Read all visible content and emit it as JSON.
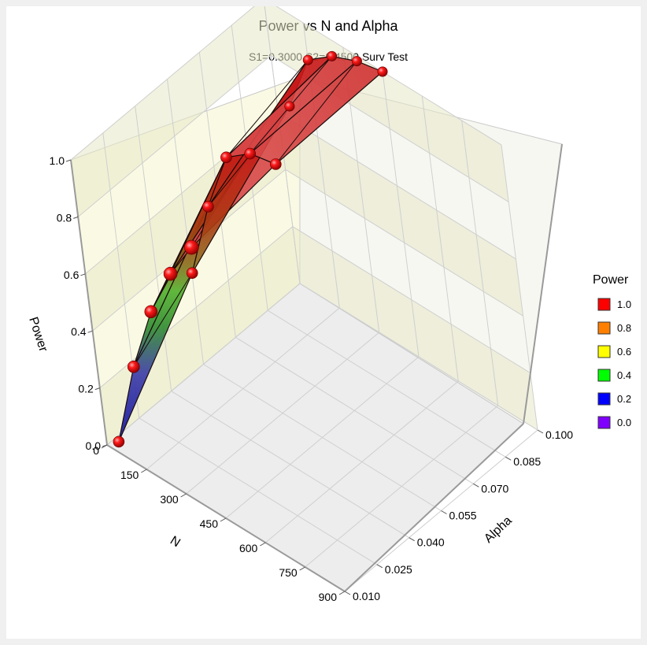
{
  "chart_data": {
    "type": "surface3d",
    "title": "Power vs N and Alpha",
    "subtitle": "S1=0.3000 S2=0.4500 Surv Test",
    "xlabel": "N",
    "ylabel": "Alpha",
    "zlabel": "Power",
    "x_ticks": [
      "0",
      "150",
      "300",
      "450",
      "600",
      "750",
      "900"
    ],
    "y_ticks": [
      "0.010",
      "0.025",
      "0.040",
      "0.055",
      "0.070",
      "0.085",
      "0.100"
    ],
    "z_ticks": [
      "0.0",
      "0.2",
      "0.4",
      "0.6",
      "0.8",
      "1.0"
    ],
    "xlim": [
      0,
      900
    ],
    "ylim": [
      0.01,
      0.1
    ],
    "zlim": [
      0,
      1
    ],
    "n_values": [
      50,
      150,
      250,
      350,
      450
    ],
    "alpha_values": [
      0.01,
      0.05,
      0.1
    ],
    "power": [
      [
        0.04,
        0.36,
        0.61,
        0.8,
        0.95
      ],
      [
        0.38,
        0.67,
        0.9,
        0.97,
        0.99
      ],
      [
        0.65,
        0.87,
        0.94,
        0.98,
        1.0
      ]
    ],
    "legend_title": "Power",
    "legend": [
      {
        "label": "1.0",
        "color": "#ff0000"
      },
      {
        "label": "0.8",
        "color": "#ff8000"
      },
      {
        "label": "0.6",
        "color": "#ffff00"
      },
      {
        "label": "0.4",
        "color": "#00ff00"
      },
      {
        "label": "0.2",
        "color": "#0000ff"
      },
      {
        "label": "0.0",
        "color": "#8000ff"
      }
    ],
    "grid": true,
    "legend_position": "right"
  }
}
